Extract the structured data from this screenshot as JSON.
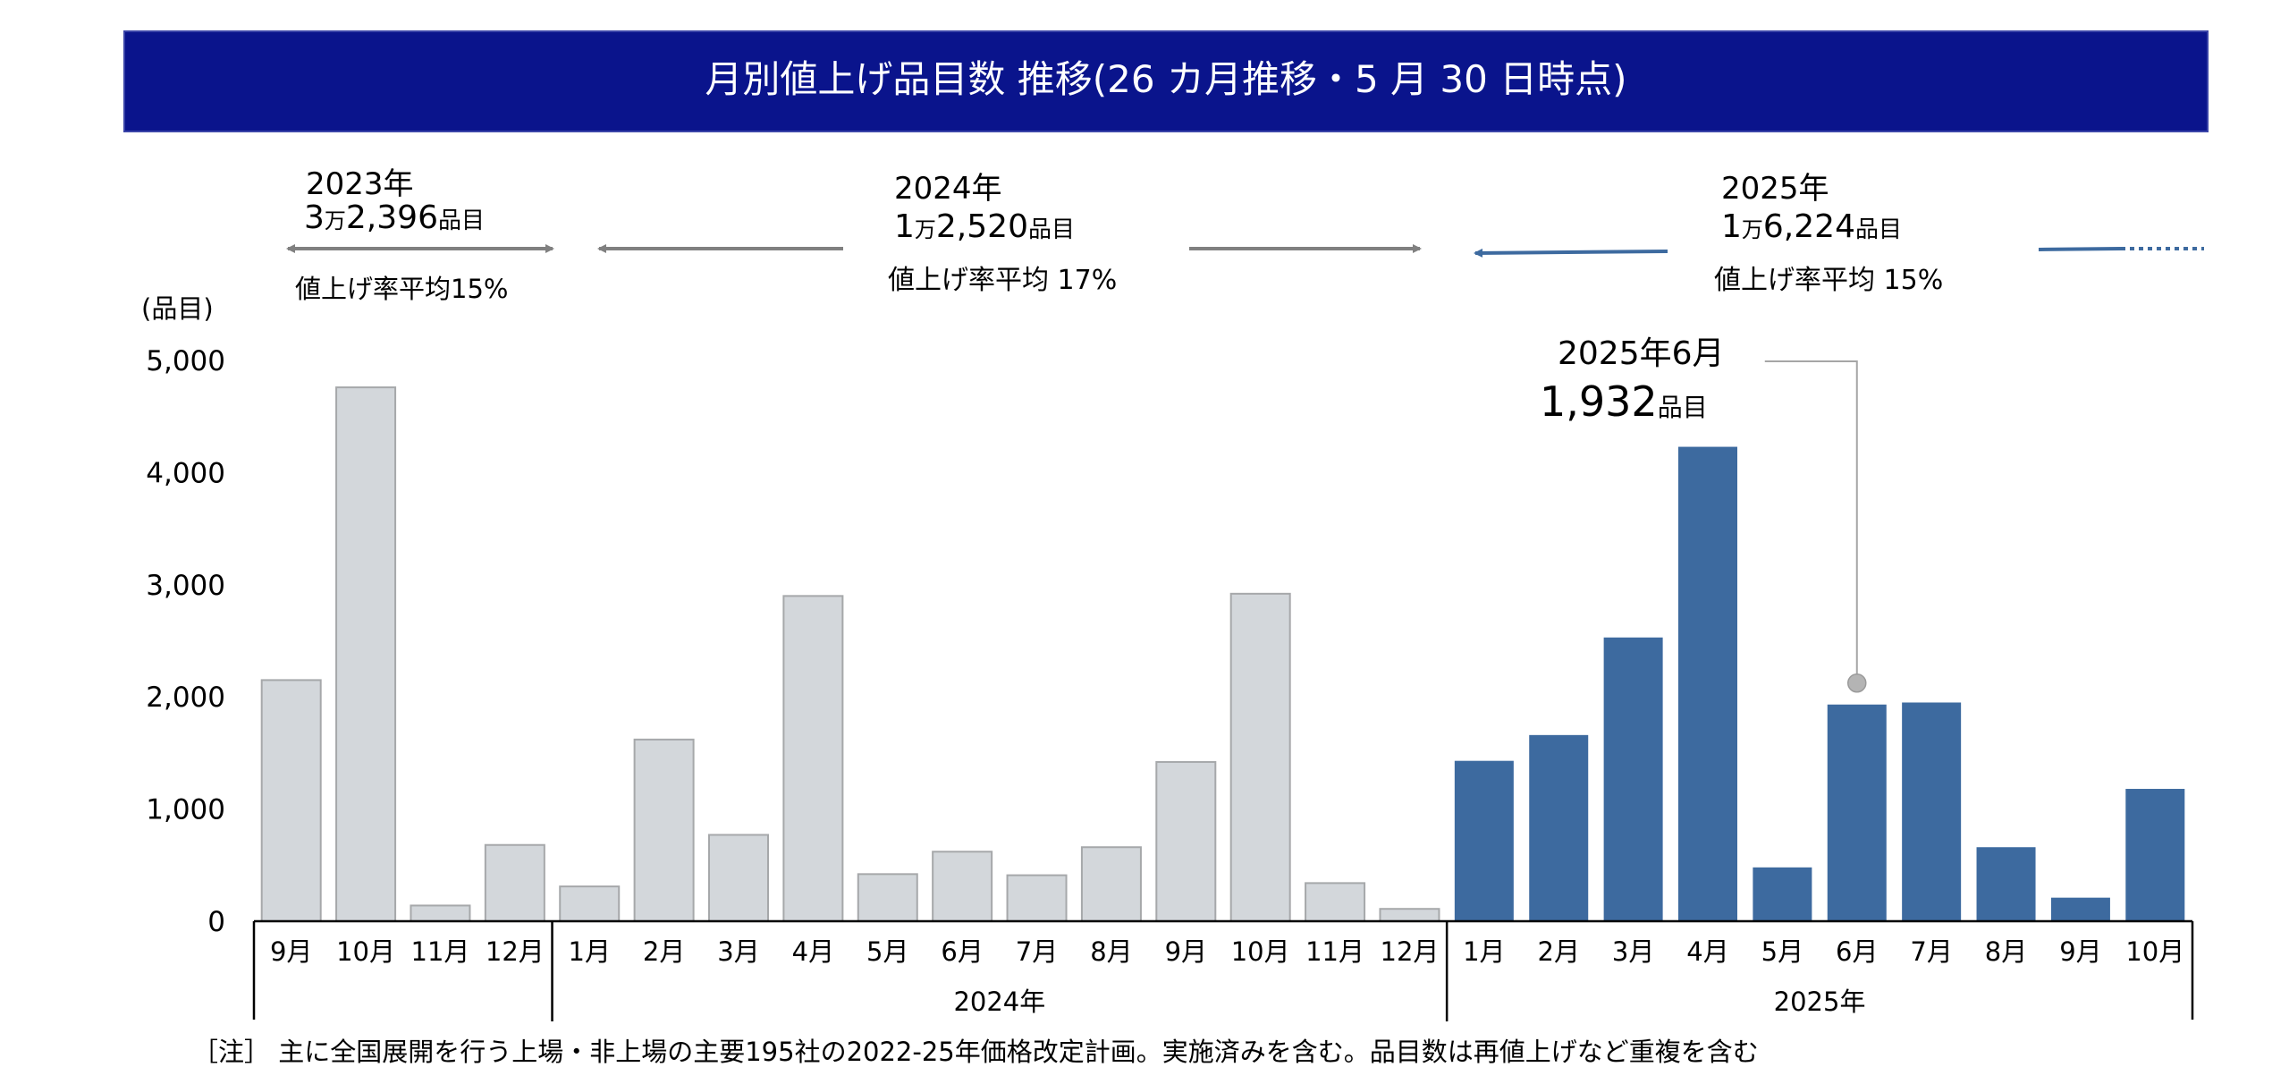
{
  "chart_data": {
    "type": "bar",
    "title": "月別値上げ品目数 推移(26 カ月推移・5 月 30 日時点)",
    "ylabel": "(品目)",
    "ylim": [
      0,
      5000
    ],
    "yticks": [
      "5,000",
      "4,000",
      "3,000",
      "2,000",
      "1,000",
      "0"
    ],
    "ytick_values": [
      5000,
      4000,
      3000,
      2000,
      1000,
      0
    ],
    "categories": [
      "9月",
      "10月",
      "11月",
      "12月",
      "1月",
      "2月",
      "3月",
      "4月",
      "5月",
      "6月",
      "7月",
      "8月",
      "9月",
      "10月",
      "11月",
      "12月",
      "1月",
      "2月",
      "3月",
      "4月",
      "5月",
      "6月",
      "7月",
      "8月",
      "9月",
      "10月"
    ],
    "values": [
      2150,
      4760,
      140,
      680,
      310,
      1620,
      770,
      2900,
      420,
      620,
      410,
      660,
      1420,
      2920,
      340,
      110,
      1430,
      1660,
      2530,
      4230,
      480,
      1932,
      1950,
      660,
      210,
      1180
    ],
    "year_groups": [
      {
        "label": "",
        "start": 0,
        "end": 3
      },
      {
        "label": "2024年",
        "start": 4,
        "end": 15
      },
      {
        "label": "2025年",
        "start": 16,
        "end": 25
      }
    ],
    "annual": [
      {
        "year": "2023年",
        "count": "3万2,396品目",
        "count_num": "3",
        "count_man": "万",
        "count_rest": "2,396",
        "count_unit": "品目",
        "avg": "値上げ率平均15%"
      },
      {
        "year": "2024年",
        "count": "1万2,520品目",
        "count_num": "1",
        "count_man": "万",
        "count_rest": "2,520",
        "count_unit": "品目",
        "avg": "値上げ率平均 17%"
      },
      {
        "year": "2025年",
        "count": "1万6,224品目",
        "count_num": "1",
        "count_man": "万",
        "count_rest": "6,224",
        "count_unit": "品目",
        "avg": "値上げ率平均 15%"
      }
    ],
    "callout": {
      "label": "2025年6月",
      "value": "1,932",
      "unit": "品目",
      "index": 21
    },
    "highlight_from_index": 16,
    "colors": {
      "past_fill": "#d3d7db",
      "past_stroke": "#a6a8aa",
      "current_fill": "#3d6a9f",
      "header_bg": "#0a148c",
      "gray_arrow": "#808080",
      "blue_arrow": "#3d6a9f"
    }
  },
  "footnote": "［注］ 主に全国展開を行う上場・非上場の主要195社の2022-25年価格改定計画。実施済みを含む。品目数は再値上げなど重複を含む"
}
